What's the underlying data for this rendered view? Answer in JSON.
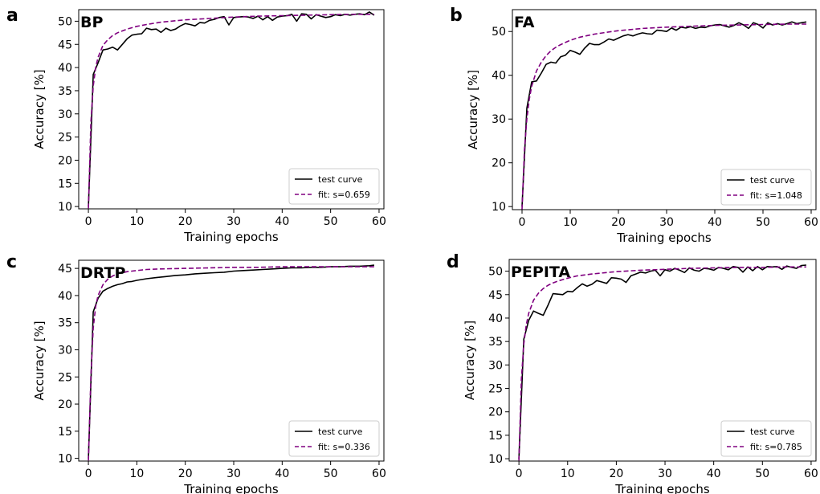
{
  "chart_data": [
    {
      "type": "line",
      "panel_letter": "a",
      "title": "BP",
      "xlabel": "Training epochs",
      "ylabel": "Accuracy [%]",
      "xlim": [
        -2,
        61
      ],
      "ylim": [
        9.5,
        52.5
      ],
      "xticks": [
        0,
        10,
        20,
        30,
        40,
        50,
        60
      ],
      "yticks": [
        10,
        15,
        20,
        25,
        30,
        35,
        40,
        45,
        50
      ],
      "grid": false,
      "legend_position": "lower-right",
      "series": [
        {
          "name": "test curve",
          "color": "#000000",
          "style": "solid",
          "x": [
            0,
            1,
            2,
            3,
            4,
            5,
            6,
            7,
            8,
            9,
            10,
            11,
            12,
            13,
            14,
            15,
            16,
            17,
            18,
            19,
            20,
            21,
            22,
            23,
            24,
            25,
            26,
            27,
            28,
            29,
            30,
            31,
            32,
            33,
            34,
            35,
            36,
            37,
            38,
            39,
            40,
            41,
            42,
            43,
            44,
            45,
            46,
            47,
            48,
            49,
            50,
            51,
            52,
            53,
            54,
            55,
            56,
            57,
            58,
            59
          ],
          "y": [
            10.0,
            38.5,
            41.0,
            43.8,
            44.0,
            44.4,
            43.8,
            45.0,
            46.2,
            47.0,
            47.2,
            47.3,
            48.5,
            48.2,
            48.3,
            47.6,
            48.5,
            48.0,
            48.3,
            49.0,
            49.5,
            49.3,
            49.0,
            49.7,
            49.6,
            50.2,
            50.4,
            50.8,
            51.0,
            49.2,
            50.8,
            50.9,
            51.0,
            50.9,
            50.6,
            51.1,
            50.3,
            51.0,
            50.2,
            50.9,
            51.1,
            51.2,
            51.5,
            50.0,
            51.6,
            51.5,
            50.5,
            51.4,
            51.1,
            50.8,
            51.0,
            51.4,
            51.2,
            51.5,
            51.3,
            51.5,
            51.6,
            51.4,
            52.0,
            51.3
          ]
        },
        {
          "name": "fit: s=0.659",
          "color": "#800080",
          "style": "dashed",
          "x": [
            0,
            0.5,
            1,
            1.5,
            2,
            3,
            4,
            5,
            6,
            7,
            8,
            10,
            12,
            15,
            18,
            20,
            25,
            30,
            35,
            40,
            45,
            50,
            55,
            59
          ],
          "y": [
            9.6,
            28.0,
            36.0,
            40.0,
            42.2,
            44.8,
            46.0,
            46.9,
            47.5,
            47.9,
            48.3,
            48.9,
            49.3,
            49.8,
            50.1,
            50.3,
            50.6,
            50.9,
            51.1,
            51.2,
            51.3,
            51.4,
            51.5,
            51.5
          ]
        }
      ]
    },
    {
      "type": "line",
      "panel_letter": "b",
      "title": "FA",
      "xlabel": "Training epochs",
      "ylabel": "Accuracy [%]",
      "xlim": [
        -2,
        61
      ],
      "ylim": [
        9.3,
        55.0
      ],
      "xticks": [
        0,
        10,
        20,
        30,
        40,
        50,
        60
      ],
      "yticks": [
        10,
        20,
        30,
        40,
        50
      ],
      "grid": false,
      "legend_position": "lower-right",
      "series": [
        {
          "name": "test curve",
          "color": "#000000",
          "style": "solid",
          "x": [
            0,
            1,
            2,
            3,
            4,
            5,
            6,
            7,
            8,
            9,
            10,
            11,
            12,
            13,
            14,
            15,
            16,
            17,
            18,
            19,
            20,
            21,
            22,
            23,
            24,
            25,
            26,
            27,
            28,
            29,
            30,
            31,
            32,
            33,
            34,
            35,
            36,
            37,
            38,
            39,
            40,
            41,
            42,
            43,
            44,
            45,
            46,
            47,
            48,
            49,
            50,
            51,
            52,
            53,
            54,
            55,
            56,
            57,
            58,
            59
          ],
          "y": [
            10.0,
            32.5,
            38.5,
            38.7,
            40.5,
            42.5,
            43.0,
            42.8,
            44.2,
            44.6,
            45.7,
            45.3,
            44.8,
            46.2,
            47.3,
            47.0,
            47.0,
            47.6,
            48.3,
            48.0,
            48.5,
            49.0,
            49.3,
            49.0,
            49.4,
            49.7,
            49.5,
            49.4,
            50.3,
            50.2,
            50.0,
            50.8,
            50.3,
            51.0,
            50.8,
            51.1,
            50.7,
            51.0,
            50.9,
            51.3,
            51.5,
            51.6,
            51.3,
            51.0,
            51.4,
            52.0,
            51.5,
            50.7,
            52.0,
            51.6,
            50.8,
            52.0,
            51.5,
            51.8,
            51.5,
            51.8,
            52.2,
            51.8,
            52.0,
            52.2
          ]
        },
        {
          "name": "fit: s=1.048",
          "color": "#800080",
          "style": "dashed",
          "x": [
            0,
            0.5,
            1,
            1.5,
            2,
            3,
            4,
            5,
            6,
            7,
            8,
            10,
            12,
            15,
            18,
            20,
            25,
            30,
            35,
            40,
            45,
            50,
            55,
            59
          ],
          "y": [
            9.4,
            23.0,
            30.0,
            34.5,
            37.5,
            41.0,
            43.0,
            44.5,
            45.6,
            46.4,
            47.0,
            48.0,
            48.7,
            49.4,
            49.9,
            50.2,
            50.7,
            51.0,
            51.2,
            51.4,
            51.5,
            51.6,
            51.7,
            51.7
          ]
        }
      ]
    },
    {
      "type": "line",
      "panel_letter": "c",
      "title": "DRTP",
      "xlabel": "Training epochs",
      "ylabel": "Accuracy [%]",
      "xlim": [
        -2,
        61
      ],
      "ylim": [
        9.5,
        46.5
      ],
      "xticks": [
        0,
        10,
        20,
        30,
        40,
        50,
        60
      ],
      "yticks": [
        10,
        15,
        20,
        25,
        30,
        35,
        40,
        45
      ],
      "grid": false,
      "legend_position": "lower-right",
      "series": [
        {
          "name": "test curve",
          "color": "#000000",
          "style": "solid",
          "x": [
            0,
            1,
            2,
            3,
            4,
            5,
            6,
            7,
            8,
            9,
            10,
            12,
            14,
            16,
            18,
            20,
            22,
            24,
            26,
            28,
            30,
            32,
            34,
            36,
            38,
            40,
            42,
            44,
            46,
            48,
            50,
            52,
            54,
            56,
            58,
            59
          ],
          "y": [
            10.0,
            37.0,
            39.5,
            40.8,
            41.3,
            41.7,
            42.0,
            42.2,
            42.5,
            42.6,
            42.8,
            43.1,
            43.3,
            43.5,
            43.7,
            43.8,
            44.0,
            44.1,
            44.2,
            44.3,
            44.5,
            44.6,
            44.7,
            44.8,
            44.9,
            45.0,
            45.1,
            45.1,
            45.2,
            45.2,
            45.3,
            45.3,
            45.4,
            45.4,
            45.5,
            45.6
          ]
        },
        {
          "name": "fit: s=0.336",
          "color": "#800080",
          "style": "dashed",
          "x": [
            0,
            0.5,
            1,
            1.5,
            2,
            3,
            4,
            5,
            6,
            8,
            10,
            12,
            15,
            20,
            25,
            30,
            35,
            40,
            45,
            50,
            55,
            59
          ],
          "y": [
            9.6,
            25.0,
            34.0,
            38.0,
            40.0,
            42.0,
            43.0,
            43.6,
            44.0,
            44.4,
            44.6,
            44.8,
            44.9,
            45.0,
            45.1,
            45.2,
            45.2,
            45.3,
            45.3,
            45.3,
            45.3,
            45.3
          ]
        }
      ]
    },
    {
      "type": "line",
      "panel_letter": "d",
      "title": "PEPITA",
      "xlabel": "Training epochs",
      "ylabel": "Accuracy [%]",
      "xlim": [
        -2,
        61
      ],
      "ylim": [
        9.5,
        52.5
      ],
      "xticks": [
        0,
        10,
        20,
        30,
        40,
        50,
        60
      ],
      "yticks": [
        10,
        15,
        20,
        25,
        30,
        35,
        40,
        45,
        50
      ],
      "grid": false,
      "legend_position": "lower-right",
      "series": [
        {
          "name": "test curve",
          "color": "#000000",
          "style": "solid",
          "x": [
            0,
            1,
            2,
            3,
            4,
            5,
            6,
            7,
            8,
            9,
            10,
            11,
            12,
            13,
            14,
            15,
            16,
            17,
            18,
            19,
            20,
            21,
            22,
            23,
            24,
            25,
            26,
            27,
            28,
            29,
            30,
            31,
            32,
            33,
            34,
            35,
            36,
            37,
            38,
            39,
            40,
            41,
            42,
            43,
            44,
            45,
            46,
            47,
            48,
            49,
            50,
            51,
            52,
            53,
            54,
            55,
            56,
            57,
            58,
            59
          ],
          "y": [
            10.0,
            35.5,
            39.5,
            41.5,
            41.0,
            40.6,
            42.8,
            45.2,
            45.1,
            45.0,
            45.7,
            45.6,
            46.5,
            47.3,
            46.8,
            47.2,
            48.0,
            47.7,
            47.4,
            48.6,
            48.5,
            48.3,
            47.6,
            49.0,
            49.4,
            49.8,
            49.6,
            50.0,
            50.2,
            49.0,
            50.3,
            50.0,
            50.6,
            50.2,
            49.7,
            50.7,
            50.2,
            50.0,
            50.6,
            50.5,
            50.2,
            50.8,
            50.6,
            50.3,
            51.0,
            50.8,
            49.8,
            50.9,
            50.1,
            51.0,
            50.3,
            51.0,
            50.9,
            51.0,
            50.4,
            51.1,
            50.8,
            50.6,
            51.2,
            51.3
          ]
        },
        {
          "name": "fit: s=0.785",
          "color": "#800080",
          "style": "dashed",
          "x": [
            0,
            0.5,
            1,
            1.5,
            2,
            3,
            4,
            5,
            6,
            7,
            8,
            10,
            12,
            15,
            18,
            20,
            25,
            30,
            35,
            40,
            45,
            50,
            55,
            59
          ],
          "y": [
            9.6,
            27.0,
            34.5,
            38.5,
            41.0,
            43.8,
            45.3,
            46.3,
            47.0,
            47.5,
            47.9,
            48.5,
            49.0,
            49.4,
            49.7,
            49.9,
            50.2,
            50.4,
            50.6,
            50.7,
            50.8,
            50.8,
            50.9,
            50.9
          ]
        }
      ]
    }
  ]
}
